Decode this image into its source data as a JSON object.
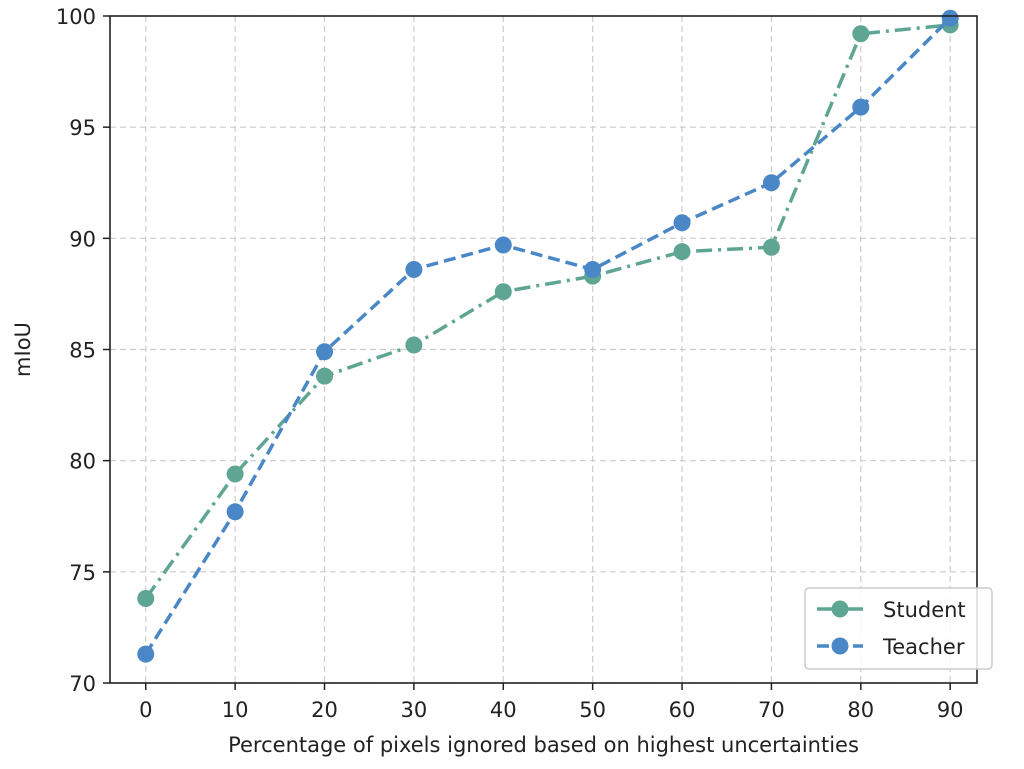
{
  "chart_data": {
    "type": "line",
    "title": "",
    "xlabel": "Percentage of pixels ignored based on highest uncertainties",
    "ylabel": "mIoU",
    "x": [
      0,
      10,
      20,
      30,
      40,
      50,
      60,
      70,
      80,
      90
    ],
    "xlim": [
      -4,
      93
    ],
    "ylim": [
      70,
      100
    ],
    "xticks": [
      "0",
      "10",
      "20",
      "30",
      "40",
      "50",
      "60",
      "70",
      "80",
      "90"
    ],
    "yticks": [
      "70",
      "75",
      "80",
      "85",
      "90",
      "95",
      "100"
    ],
    "grid": true,
    "legend_position": "bottom-right",
    "series": [
      {
        "name": "Student",
        "color": "#5fa594",
        "line_style": "dash-dot",
        "marker": "circle",
        "values": [
          73.8,
          79.4,
          83.8,
          85.2,
          87.6,
          88.3,
          89.4,
          89.6,
          99.2,
          99.6
        ]
      },
      {
        "name": "Teacher",
        "color": "#4a87c7",
        "line_style": "dashed",
        "marker": "circle",
        "values": [
          71.3,
          77.7,
          84.9,
          88.6,
          89.7,
          88.6,
          90.7,
          92.5,
          95.9,
          99.9
        ]
      }
    ]
  }
}
